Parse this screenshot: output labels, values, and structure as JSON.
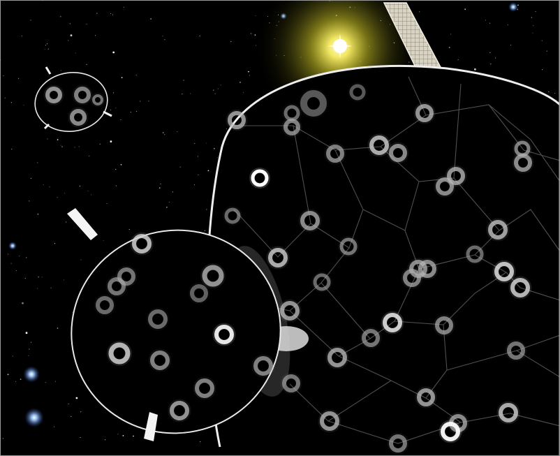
{
  "image": {
    "subject": "space",
    "elements": [
      "starfield",
      "yellow-glowing-star",
      "solar-panel-strip",
      "large-cell-membrane",
      "medium-cell",
      "small-cell",
      "ring-vesicles",
      "connecting-filaments"
    ]
  },
  "colors": {
    "space": "#000000",
    "membrane": "#e6e6e6",
    "sun_glow": "#ffee66",
    "ring": "#c8c8c8",
    "filament": "#5a5a5a"
  }
}
